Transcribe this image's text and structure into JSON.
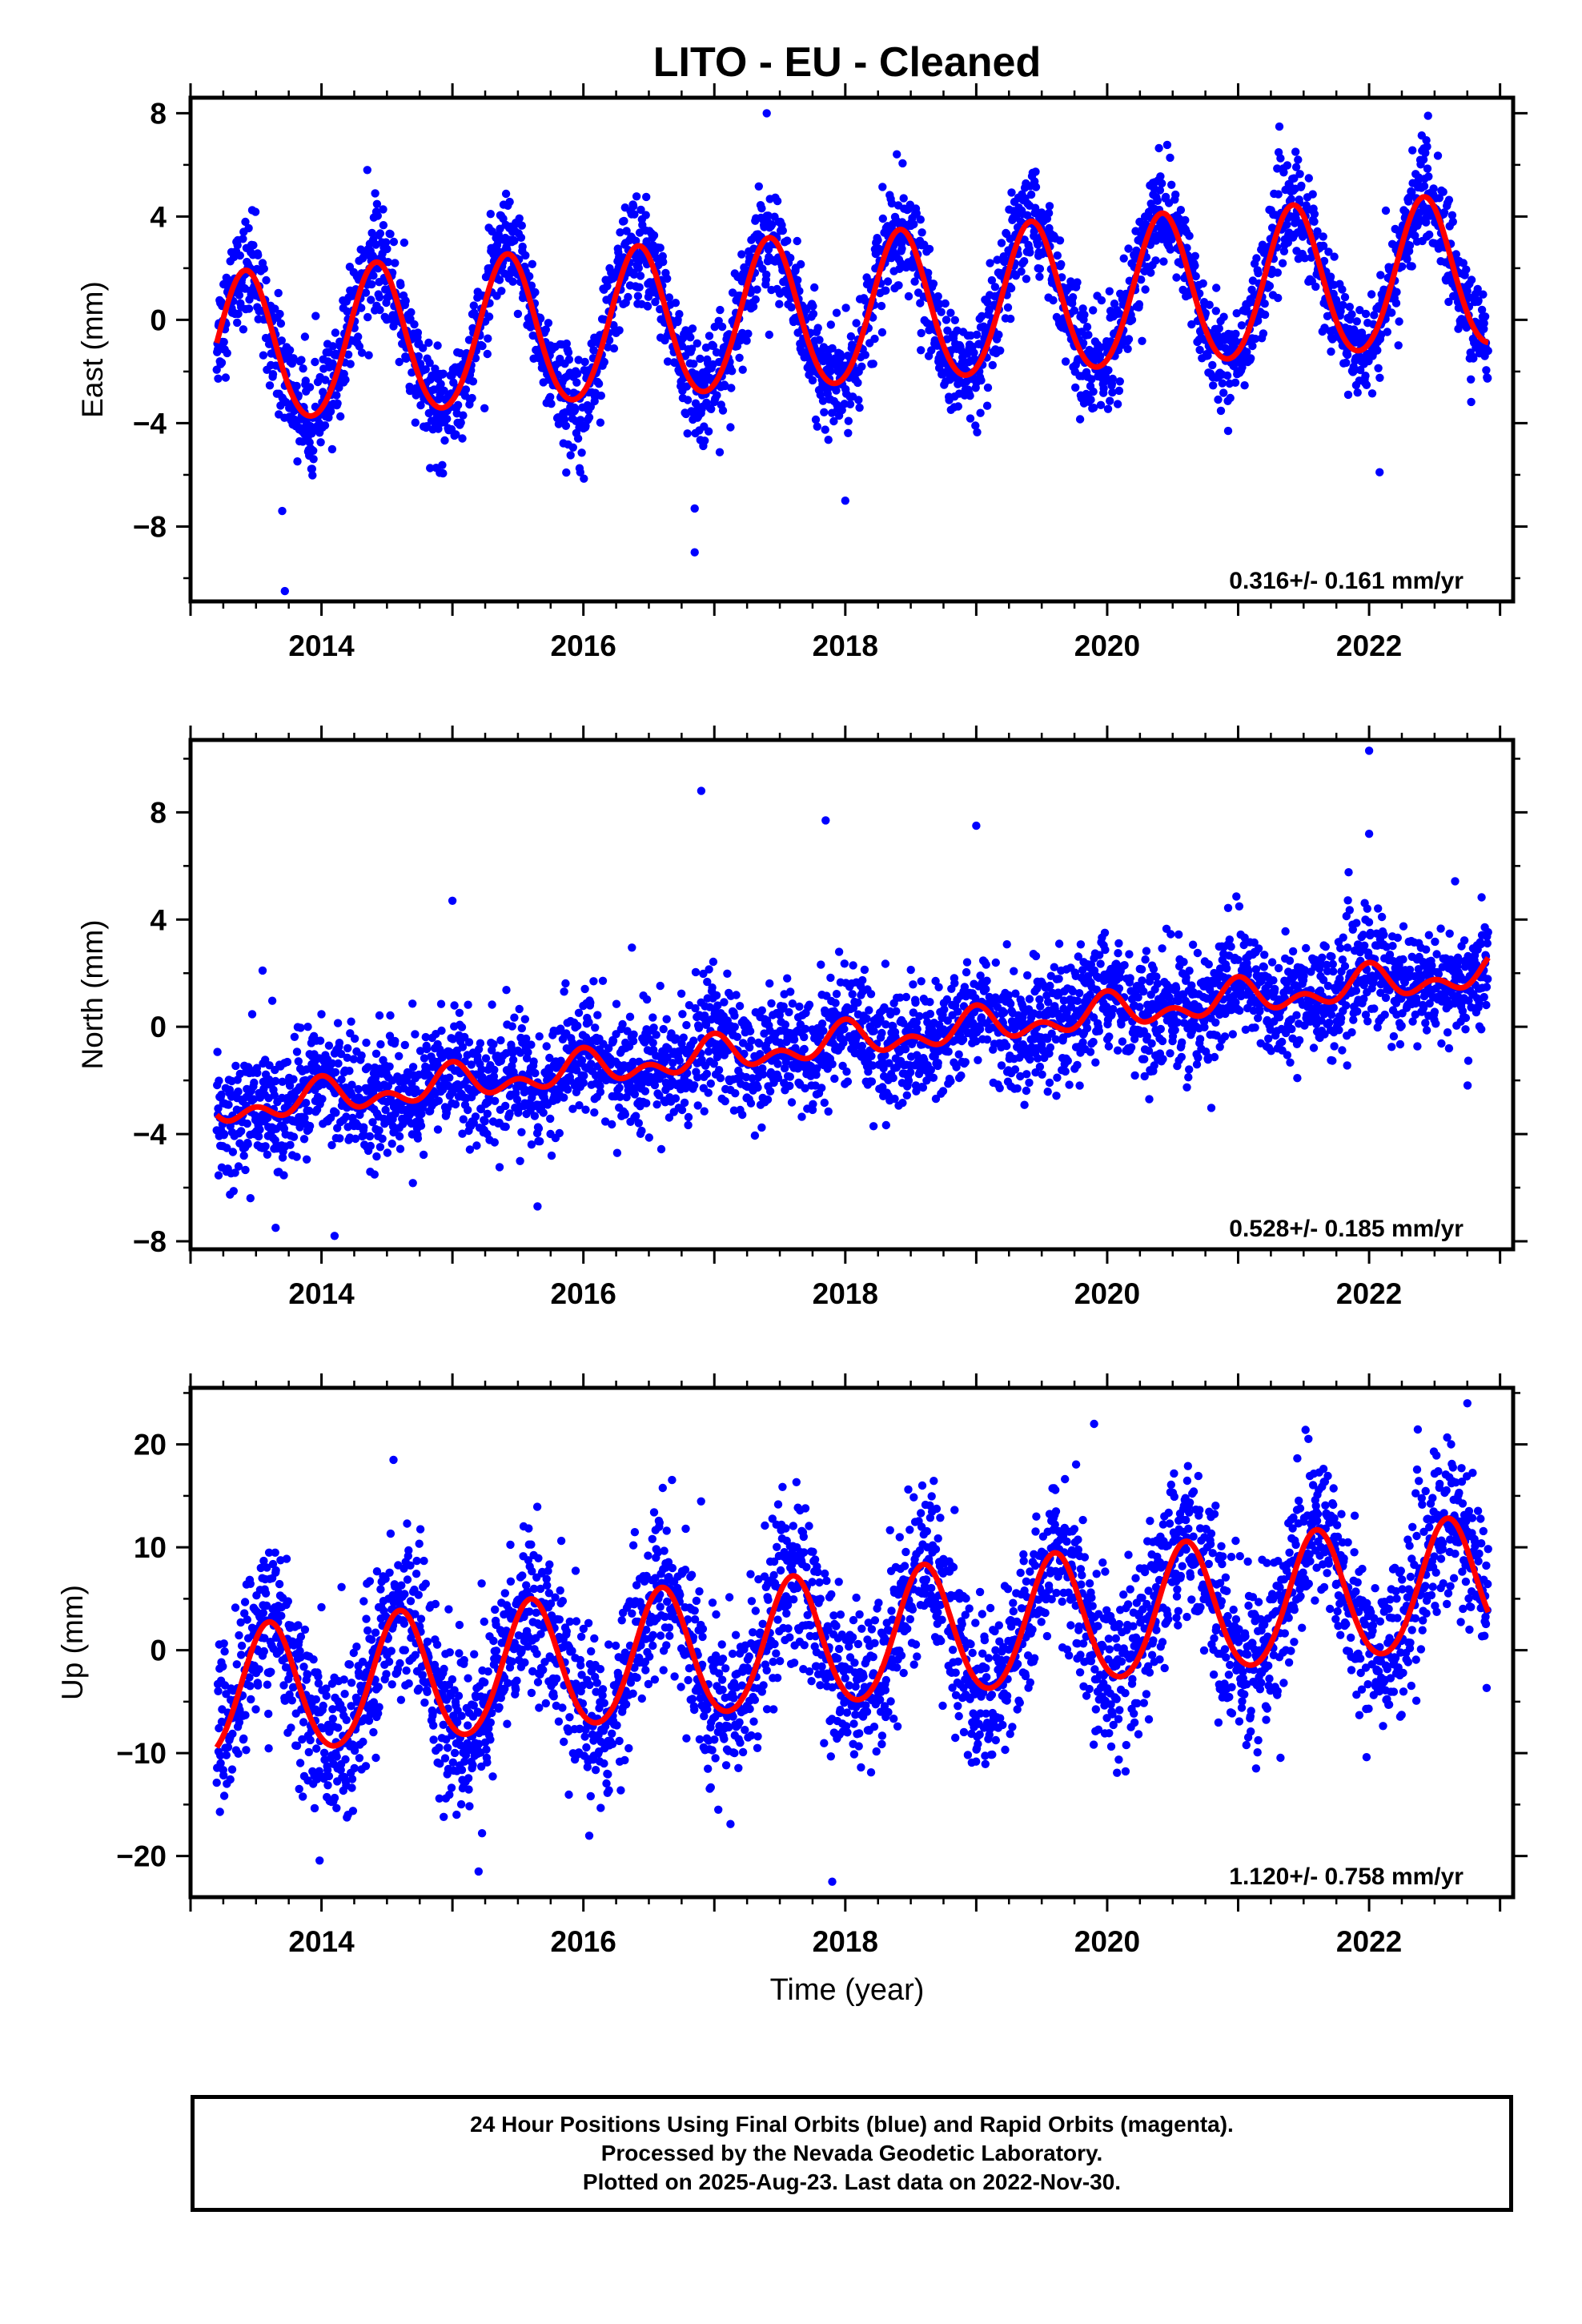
{
  "figure": {
    "title": "LITO  - EU - Cleaned",
    "xlabel": "Time (year)"
  },
  "colors": {
    "data_points": "#0000ff",
    "model_curve": "#ff0000",
    "axes": "#000000"
  },
  "chart_data": [
    {
      "type": "scatter",
      "name": "east",
      "ylabel": "East (mm)",
      "xlim": [
        2013.0,
        2023.1
      ],
      "ylim": [
        -10.9,
        8.6
      ],
      "xticks": [
        2014,
        2016,
        2018,
        2020,
        2022
      ],
      "xtick_labels": [
        "2014",
        "2016",
        "2018",
        "2020",
        "2022"
      ],
      "yticks": [
        -8,
        -4,
        0,
        4,
        8
      ],
      "ytick_labels": [
        "−8",
        "−4",
        "0",
        "4",
        "8"
      ],
      "rate_label": "0.316+/- 0.161 mm/yr",
      "trend": {
        "t0": 2013.2,
        "intercept": -1.25,
        "rate_mm_per_yr": 0.316
      },
      "seasonal": {
        "annual_amplitude": 2.9,
        "annual_peak_year_fraction": 0.42,
        "semiannual_amplitude": 0.2
      },
      "noise_sd": 1.0,
      "outliers": [
        [
          2013.7,
          -7.4
        ],
        [
          2013.72,
          -10.5
        ],
        [
          2016.85,
          -9.0
        ],
        [
          2016.85,
          -7.3
        ],
        [
          2017.4,
          8.0
        ],
        [
          2014.35,
          5.8
        ],
        [
          2022.45,
          7.9
        ],
        [
          2022.08,
          -5.9
        ],
        [
          2018.0,
          -7.0
        ]
      ]
    },
    {
      "type": "scatter",
      "name": "north",
      "ylabel": "North (mm)",
      "xlim": [
        2013.0,
        2023.1
      ],
      "ylim": [
        -8.3,
        10.7
      ],
      "xticks": [
        2014,
        2016,
        2018,
        2020,
        2022
      ],
      "xtick_labels": [
        "2014",
        "2016",
        "2018",
        "2020",
        "2022"
      ],
      "yticks": [
        -8,
        -4,
        0,
        4,
        8
      ],
      "ytick_labels": [
        "−8",
        "−4",
        "0",
        "4",
        "8"
      ],
      "rate_label": "0.528+/- 0.185 mm/yr",
      "trend": {
        "t0": 2013.2,
        "intercept": -3.1,
        "rate_mm_per_yr": 0.528
      },
      "seasonal": {
        "annual_amplitude": 0.45,
        "annual_peak_year_fraction": 0.0,
        "semiannual_amplitude": 0.4
      },
      "noise_sd": 1.1,
      "outliers": [
        [
          2013.55,
          2.1
        ],
        [
          2016.9,
          8.8
        ],
        [
          2017.85,
          7.7
        ],
        [
          2019.0,
          7.5
        ],
        [
          2022.0,
          10.3
        ],
        [
          2022.0,
          7.2
        ],
        [
          2015.65,
          -6.7
        ],
        [
          2013.65,
          -7.5
        ],
        [
          2014.1,
          -7.8
        ],
        [
          2015.0,
          4.7
        ]
      ]
    },
    {
      "type": "scatter",
      "name": "up",
      "ylabel": "Up (mm)",
      "xlim": [
        2013.0,
        2023.1
      ],
      "ylim": [
        -24.0,
        25.5
      ],
      "xticks": [
        2014,
        2016,
        2018,
        2020,
        2022
      ],
      "xtick_labels": [
        "2014",
        "2016",
        "2018",
        "2020",
        "2022"
      ],
      "yticks": [
        -20,
        -10,
        0,
        10,
        20
      ],
      "ytick_labels": [
        "−20",
        "−10",
        "0",
        "10",
        "20"
      ],
      "rate_label": "1.120+/- 0.758 mm/yr",
      "trend": {
        "t0": 2013.2,
        "intercept": -4.5,
        "rate_mm_per_yr": 1.12
      },
      "seasonal": {
        "annual_amplitude": 6.3,
        "annual_peak_year_fraction": 0.6,
        "semiannual_amplitude": 0.5
      },
      "noise_sd": 4.0,
      "outliers": [
        [
          2022.75,
          24.0
        ],
        [
          2017.9,
          -22.5
        ],
        [
          2019.9,
          22.0
        ],
        [
          2015.2,
          -21.5
        ],
        [
          2014.55,
          18.5
        ]
      ]
    }
  ],
  "footer": {
    "line1": "24 Hour Positions Using Final Orbits (blue) and Rapid Orbits (magenta).",
    "line2": "Processed by the Nevada Geodetic Laboratory.",
    "line3": "Plotted on 2025-Aug-23. Last data on 2022-Nov-30."
  }
}
